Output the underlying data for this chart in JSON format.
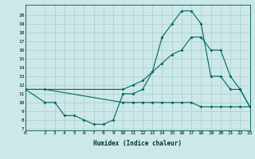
{
  "title": "",
  "xlabel": "Humidex (Indice chaleur)",
  "bg_color": "#cce8e8",
  "grid_color": "#aacccc",
  "line_color": "#006666",
  "xlim": [
    0,
    23
  ],
  "ylim": [
    7,
    21
  ],
  "yticks": [
    7,
    8,
    9,
    10,
    11,
    12,
    13,
    14,
    15,
    16,
    17,
    18,
    19,
    20
  ],
  "xticks": [
    0,
    2,
    3,
    4,
    5,
    6,
    7,
    8,
    9,
    10,
    11,
    12,
    13,
    14,
    15,
    16,
    17,
    18,
    19,
    20,
    21,
    22,
    23
  ],
  "curve1_x": [
    0,
    2,
    3,
    4,
    5,
    6,
    7,
    8,
    9,
    10,
    11,
    12,
    13,
    14,
    15,
    16,
    17,
    18,
    19,
    20,
    21,
    22,
    23
  ],
  "curve1_y": [
    11.5,
    10.0,
    10.0,
    8.5,
    8.5,
    8.0,
    7.5,
    7.5,
    8.0,
    11.0,
    11.0,
    11.5,
    13.5,
    17.5,
    19.0,
    20.5,
    20.5,
    19.0,
    13.0,
    13.0,
    11.5,
    11.5,
    9.5
  ],
  "curve2_x": [
    0,
    2,
    10,
    11,
    12,
    13,
    14,
    15,
    16,
    17,
    18,
    19,
    20,
    21,
    22,
    23
  ],
  "curve2_y": [
    11.5,
    11.5,
    10.0,
    10.0,
    10.0,
    10.0,
    10.0,
    10.0,
    10.0,
    10.0,
    9.5,
    9.5,
    9.5,
    9.5,
    9.5,
    9.5
  ],
  "curve3_x": [
    0,
    10,
    11,
    12,
    13,
    14,
    15,
    16,
    17,
    18,
    19,
    20,
    21,
    22,
    23
  ],
  "curve3_y": [
    11.5,
    11.5,
    12.0,
    12.5,
    13.5,
    14.5,
    15.5,
    16.0,
    17.5,
    17.5,
    16.0,
    16.0,
    13.0,
    11.5,
    9.5
  ],
  "markersize": 2.0,
  "linewidth": 0.8
}
